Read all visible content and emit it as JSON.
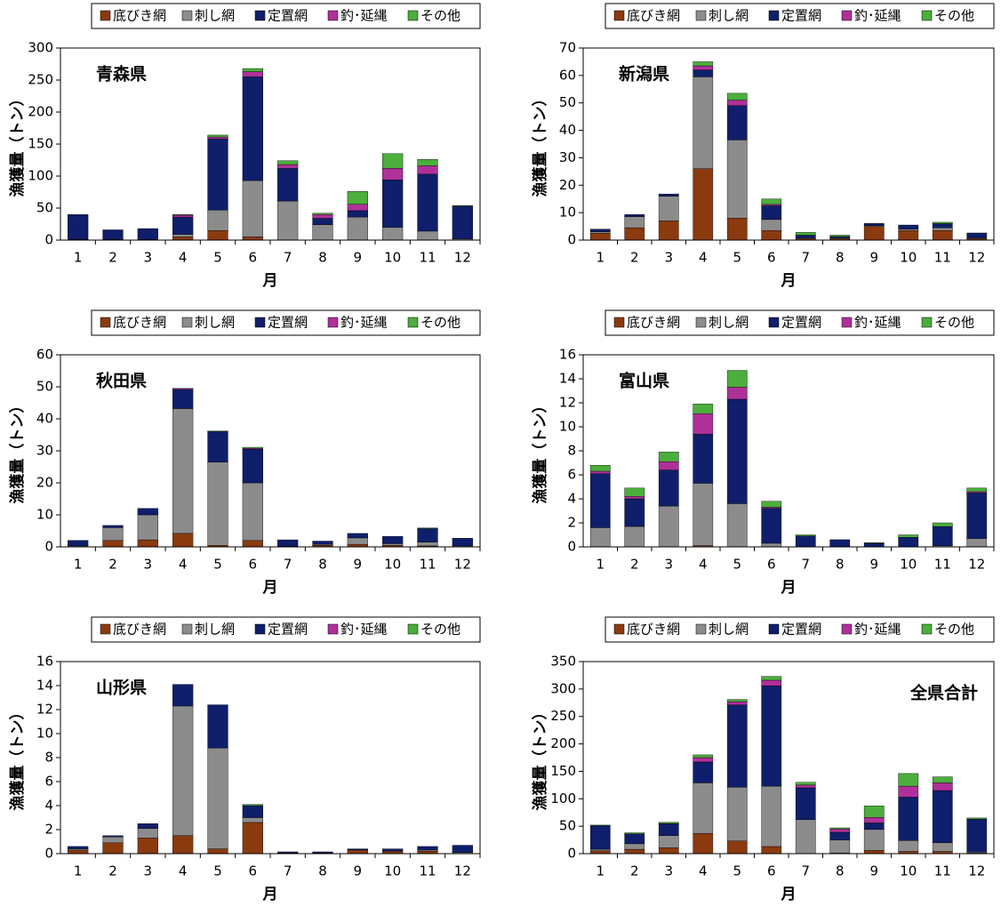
{
  "chart_data": [
    {
      "type": "bar",
      "stacked": true,
      "title": "青森県",
      "y_label": "漁獲量（トン）",
      "x_label": "月",
      "categories": [
        "1",
        "2",
        "3",
        "4",
        "5",
        "6",
        "7",
        "8",
        "9",
        "10",
        "11",
        "12"
      ],
      "series": [
        {
          "name": "底びき網",
          "color": "#8b3a0f",
          "values": [
            0,
            0,
            0,
            5,
            15,
            5,
            0,
            0,
            0,
            0,
            0,
            0
          ]
        },
        {
          "name": "刺し網",
          "color": "#8c8c8c",
          "values": [
            1,
            1,
            1,
            4,
            32,
            88,
            61,
            24,
            36,
            20,
            14,
            2
          ]
        },
        {
          "name": "定置網",
          "color": "#0f1f6b",
          "values": [
            39,
            15,
            17,
            27,
            111,
            162,
            51,
            10,
            10,
            74,
            89,
            51
          ]
        },
        {
          "name": "釣･延縄",
          "color": "#b0309a",
          "values": [
            0,
            0,
            0,
            3,
            3,
            8,
            6,
            6,
            10,
            18,
            13,
            0
          ]
        },
        {
          "name": "その他",
          "color": "#4cae3c",
          "values": [
            0,
            0,
            0,
            1,
            3,
            5,
            6,
            2,
            20,
            23,
            10,
            1
          ]
        }
      ],
      "ylim": [
        0,
        300
      ],
      "yticks": [
        0,
        50,
        100,
        150,
        200,
        250,
        300
      ]
    },
    {
      "type": "bar",
      "stacked": true,
      "title": "新潟県",
      "y_label": "漁獲量（トン）",
      "x_label": "月",
      "categories": [
        "1",
        "2",
        "3",
        "4",
        "5",
        "6",
        "7",
        "8",
        "9",
        "10",
        "11",
        "12"
      ],
      "series": [
        {
          "name": "底びき網",
          "color": "#8b3a0f",
          "values": [
            2.5,
            4.5,
            7,
            26,
            8,
            3.5,
            0.5,
            0.5,
            5,
            3.5,
            3.5,
            0.5
          ]
        },
        {
          "name": "刺し網",
          "color": "#8c8c8c",
          "values": [
            0.5,
            4,
            9,
            33.5,
            28.5,
            4,
            0.3,
            0.3,
            0.3,
            0.5,
            1,
            0.3
          ]
        },
        {
          "name": "定置網",
          "color": "#0f1f6b",
          "values": [
            1,
            0.8,
            0.8,
            2.5,
            12.5,
            5,
            1,
            0.5,
            0.8,
            1.5,
            1.5,
            1.8
          ]
        },
        {
          "name": "釣･延縄",
          "color": "#b0309a",
          "values": [
            0,
            0,
            0,
            1.5,
            2,
            0.5,
            0,
            0,
            0,
            0,
            0,
            0
          ]
        },
        {
          "name": "その他",
          "color": "#4cae3c",
          "values": [
            0,
            0,
            0,
            1.5,
            2.5,
            2,
            1,
            0.5,
            0,
            0,
            0.5,
            0
          ]
        }
      ],
      "ylim": [
        0,
        70
      ],
      "yticks": [
        0,
        10,
        20,
        30,
        40,
        50,
        60,
        70
      ]
    },
    {
      "type": "bar",
      "stacked": true,
      "title": "秋田県",
      "y_label": "漁獲量（トン）",
      "x_label": "月",
      "categories": [
        "1",
        "2",
        "3",
        "4",
        "5",
        "6",
        "7",
        "8",
        "9",
        "10",
        "11",
        "12"
      ],
      "series": [
        {
          "name": "底びき網",
          "color": "#8b3a0f",
          "values": [
            0,
            2,
            2.2,
            4.2,
            0.5,
            2,
            0,
            0.5,
            0.8,
            0.5,
            0.3,
            0
          ]
        },
        {
          "name": "刺し網",
          "color": "#8c8c8c",
          "values": [
            0.3,
            4,
            7.8,
            39,
            26,
            18,
            0.2,
            0.3,
            2,
            0.5,
            1.2,
            0.3
          ]
        },
        {
          "name": "定置網",
          "color": "#0f1f6b",
          "values": [
            1.7,
            0.7,
            2,
            6,
            9.5,
            10.5,
            2,
            1,
            1.4,
            2.3,
            4.2,
            2.4
          ]
        },
        {
          "name": "釣･延縄",
          "color": "#b0309a",
          "values": [
            0,
            0,
            0,
            0.3,
            0,
            0.3,
            0,
            0,
            0,
            0,
            0,
            0
          ]
        },
        {
          "name": "その他",
          "color": "#4cae3c",
          "values": [
            0,
            0,
            0,
            0,
            0.2,
            0.3,
            0,
            0,
            0,
            0,
            0.2,
            0
          ]
        }
      ],
      "ylim": [
        0,
        60
      ],
      "yticks": [
        0,
        10,
        20,
        30,
        40,
        50,
        60
      ]
    },
    {
      "type": "bar",
      "stacked": true,
      "title": "富山県",
      "y_label": "漁獲量（トン）",
      "x_label": "月",
      "categories": [
        "1",
        "2",
        "3",
        "4",
        "5",
        "6",
        "7",
        "8",
        "9",
        "10",
        "11",
        "12"
      ],
      "series": [
        {
          "name": "底びき網",
          "color": "#8b3a0f",
          "values": [
            0,
            0,
            0,
            0.1,
            0,
            0,
            0,
            0,
            0,
            0,
            0,
            0
          ]
        },
        {
          "name": "刺し網",
          "color": "#8c8c8c",
          "values": [
            1.6,
            1.7,
            3.4,
            5.2,
            3.6,
            0.3,
            0,
            0,
            0,
            0,
            0.1,
            0.7
          ]
        },
        {
          "name": "定置網",
          "color": "#0f1f6b",
          "values": [
            4.5,
            2.3,
            3,
            4.1,
            8.7,
            2.9,
            0.9,
            0.6,
            0.3,
            0.8,
            1.6,
            3.8
          ]
        },
        {
          "name": "釣･延縄",
          "color": "#b0309a",
          "values": [
            0.2,
            0.2,
            0.7,
            1.7,
            1,
            0.1,
            0,
            0,
            0,
            0,
            0,
            0.1
          ]
        },
        {
          "name": "その他",
          "color": "#4cae3c",
          "values": [
            0.5,
            0.7,
            0.8,
            0.8,
            1.4,
            0.5,
            0.1,
            0,
            0.05,
            0.2,
            0.3,
            0.3
          ]
        }
      ],
      "ylim": [
        0,
        16
      ],
      "yticks": [
        0,
        2,
        4,
        6,
        8,
        10,
        12,
        14,
        16
      ]
    },
    {
      "type": "bar",
      "stacked": true,
      "title": "山形県",
      "y_label": "漁獲量（トン）",
      "x_label": "月",
      "categories": [
        "1",
        "2",
        "3",
        "4",
        "5",
        "6",
        "7",
        "8",
        "9",
        "10",
        "11",
        "12"
      ],
      "series": [
        {
          "name": "底びき網",
          "color": "#8b3a0f",
          "values": [
            0.3,
            0.9,
            1.3,
            1.5,
            0.4,
            2.6,
            0,
            0,
            0.3,
            0.2,
            0.2,
            0
          ]
        },
        {
          "name": "刺し網",
          "color": "#8c8c8c",
          "values": [
            0.1,
            0.5,
            0.8,
            10.8,
            8.4,
            0.4,
            0.05,
            0.05,
            0,
            0,
            0.1,
            0.1
          ]
        },
        {
          "name": "定置網",
          "color": "#0f1f6b",
          "values": [
            0.2,
            0.1,
            0.4,
            1.8,
            3.6,
            1,
            0.1,
            0.1,
            0.1,
            0.2,
            0.3,
            0.6
          ]
        },
        {
          "name": "釣･延縄",
          "color": "#b0309a",
          "values": [
            0,
            0,
            0,
            0,
            0,
            0,
            0,
            0,
            0,
            0,
            0,
            0
          ]
        },
        {
          "name": "その他",
          "color": "#4cae3c",
          "values": [
            0,
            0,
            0,
            0,
            0,
            0.1,
            0,
            0,
            0,
            0,
            0,
            0
          ]
        }
      ],
      "ylim": [
        0,
        16
      ],
      "yticks": [
        0,
        2,
        4,
        6,
        8,
        10,
        12,
        14,
        16
      ]
    },
    {
      "type": "bar",
      "stacked": true,
      "title": "全県合計",
      "title_align": "right",
      "y_label": "漁獲量（トン）",
      "x_label": "月",
      "categories": [
        "1",
        "2",
        "3",
        "4",
        "5",
        "6",
        "7",
        "8",
        "9",
        "10",
        "11",
        "12"
      ],
      "series": [
        {
          "name": "底びき網",
          "color": "#8b3a0f",
          "values": [
            5,
            8,
            11,
            37,
            23,
            13,
            0,
            1,
            6,
            4,
            4,
            1
          ]
        },
        {
          "name": "刺し網",
          "color": "#8c8c8c",
          "values": [
            3,
            10,
            22,
            92,
            98,
            110,
            62,
            24,
            38,
            20,
            16,
            2
          ]
        },
        {
          "name": "定置網",
          "color": "#0f1f6b",
          "values": [
            43,
            18,
            21,
            38,
            150,
            183,
            58,
            14,
            12,
            79,
            95,
            60
          ]
        },
        {
          "name": "釣･延縄",
          "color": "#b0309a",
          "values": [
            0,
            0,
            1,
            8,
            6,
            10,
            5,
            6,
            10,
            20,
            14,
            0
          ]
        },
        {
          "name": "その他",
          "color": "#4cae3c",
          "values": [
            1,
            2,
            2,
            5,
            4,
            7,
            5,
            2,
            21,
            23,
            11,
            2
          ]
        }
      ],
      "ylim": [
        0,
        350
      ],
      "yticks": [
        0,
        50,
        100,
        150,
        200,
        250,
        300,
        350
      ]
    }
  ]
}
